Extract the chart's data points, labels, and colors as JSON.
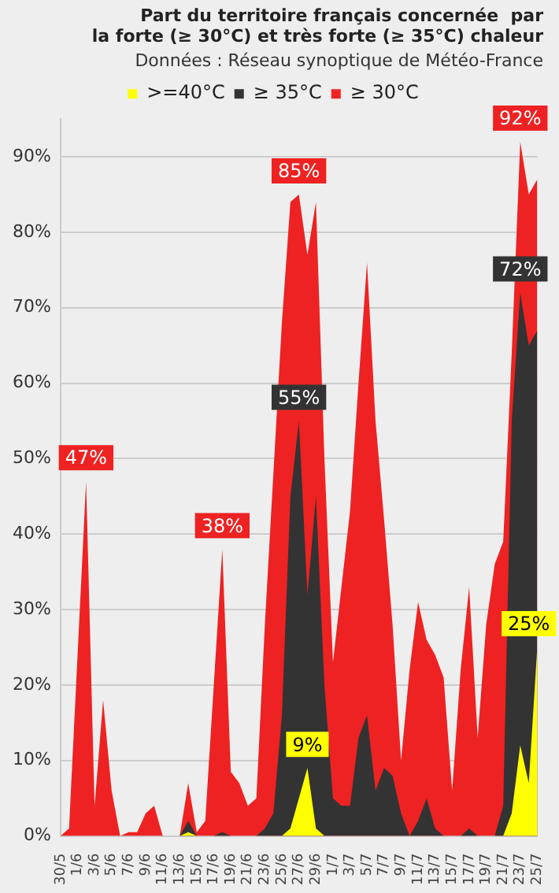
{
  "chart_data": {
    "type": "area",
    "title": "Part du territoire français concernée  par\nla forte (≥ 30°C) et très forte (≥ 35°C) chaleur",
    "subtitle": "Données : Réseau synoptique de Météo-France",
    "categories": [
      "30/5",
      null,
      "1/6",
      null,
      "3/6",
      null,
      "5/6",
      null,
      "7/6",
      null,
      "9/6",
      null,
      "11/6",
      null,
      "13/6",
      null,
      "15/6",
      null,
      "17/6",
      null,
      "19/6",
      null,
      "21/6",
      null,
      "23/6",
      null,
      "25/6",
      null,
      "27/6",
      null,
      "29/6",
      null,
      "1/7",
      null,
      "3/7",
      null,
      "5/7",
      null,
      "7/7",
      null,
      "9/7",
      null,
      "11/7",
      null,
      "13/7",
      null,
      "15/7",
      null,
      "17/7",
      null,
      "19/7",
      null,
      "21/7",
      null,
      "23/7",
      null,
      "25/7"
    ],
    "series": [
      {
        "name": "≥ 30°C",
        "color": "#ee2222",
        "values": [
          0,
          1,
          24,
          47,
          4,
          18,
          6,
          0,
          0.5,
          0.5,
          3,
          4,
          0,
          0,
          0,
          7,
          0.5,
          2,
          20,
          38,
          8.5,
          7,
          4,
          5,
          28,
          48,
          68,
          84,
          85,
          77,
          84,
          50,
          23,
          33,
          43,
          60,
          76,
          55,
          42,
          28,
          10,
          22,
          31,
          26,
          24,
          21,
          6,
          22,
          33,
          13,
          28,
          36,
          39,
          64,
          92,
          85,
          87
        ],
        "value_labels": [
          null,
          null,
          null,
          "47%",
          null,
          null,
          null,
          null,
          null,
          null,
          null,
          null,
          null,
          null,
          null,
          null,
          null,
          null,
          null,
          "38%",
          null,
          null,
          null,
          null,
          null,
          null,
          null,
          null,
          "85%",
          null,
          null,
          null,
          null,
          null,
          null,
          null,
          null,
          null,
          null,
          null,
          null,
          null,
          null,
          null,
          null,
          null,
          null,
          null,
          null,
          null,
          null,
          null,
          null,
          null,
          "92%",
          null,
          null
        ]
      },
      {
        "name": "≥ 35°C",
        "color": "#333333",
        "values": [
          0,
          0,
          0,
          0,
          0,
          0,
          0,
          0,
          0,
          0,
          0,
          0,
          0,
          0,
          0,
          2,
          0,
          0,
          0,
          0.5,
          0,
          0,
          0,
          0,
          1,
          3,
          16,
          45,
          55,
          32,
          45,
          20,
          5,
          4,
          4,
          13,
          16,
          6,
          9,
          8,
          3,
          0,
          2,
          5,
          1,
          0,
          0,
          0,
          1,
          0,
          0,
          0,
          4,
          55,
          72,
          65,
          67
        ],
        "value_labels": [
          null,
          null,
          null,
          null,
          null,
          null,
          null,
          null,
          null,
          null,
          null,
          null,
          null,
          null,
          null,
          null,
          null,
          null,
          null,
          null,
          null,
          null,
          null,
          null,
          null,
          null,
          null,
          null,
          "55%",
          null,
          null,
          null,
          null,
          null,
          null,
          null,
          null,
          null,
          null,
          null,
          null,
          null,
          null,
          null,
          null,
          null,
          null,
          null,
          null,
          null,
          null,
          null,
          null,
          null,
          "72%",
          null,
          null
        ]
      },
      {
        "name": ">=40°C",
        "color": "#ffff00",
        "values": [
          0,
          0,
          0,
          0,
          0,
          0,
          0,
          0,
          0,
          0,
          0,
          0,
          0,
          0,
          0,
          0.5,
          0,
          0,
          0,
          0,
          0,
          0,
          0,
          0,
          0,
          0,
          0,
          1,
          5,
          9,
          1,
          0,
          0,
          0,
          0,
          0,
          0,
          0,
          0,
          0,
          0,
          0,
          0,
          0,
          0,
          0,
          0,
          0,
          0,
          0,
          0,
          0,
          0,
          3,
          12,
          7,
          25
        ],
        "value_labels": [
          null,
          null,
          null,
          null,
          null,
          null,
          null,
          null,
          null,
          null,
          null,
          null,
          null,
          null,
          null,
          null,
          null,
          null,
          null,
          null,
          null,
          null,
          null,
          null,
          null,
          null,
          null,
          null,
          null,
          "9%",
          null,
          null,
          null,
          null,
          null,
          null,
          null,
          null,
          null,
          null,
          null,
          null,
          null,
          null,
          null,
          null,
          null,
          null,
          null,
          null,
          null,
          null,
          null,
          null,
          null,
          null,
          "25%"
        ]
      }
    ],
    "ylim": [
      0,
      95
    ],
    "yticks": [
      {
        "value": 0,
        "label": "0%"
      },
      {
        "value": 10,
        "label": "10%"
      },
      {
        "value": 20,
        "label": "20%"
      },
      {
        "value": 30,
        "label": "30%"
      },
      {
        "value": 40,
        "label": "40%"
      },
      {
        "value": 50,
        "label": "50%"
      },
      {
        "value": 60,
        "label": "60%"
      },
      {
        "value": 70,
        "label": "70%"
      },
      {
        "value": 80,
        "label": "80%"
      },
      {
        "value": 90,
        "label": "90%"
      }
    ],
    "grid": "y",
    "legend": "top",
    "marker": "none"
  }
}
